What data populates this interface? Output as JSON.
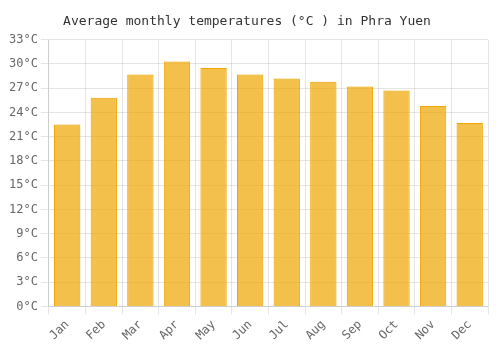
{
  "chart_data": {
    "type": "bar",
    "title": "Average monthly temperatures (°C ) in Phra Yuen",
    "categories": [
      "Jan",
      "Feb",
      "Mar",
      "Apr",
      "May",
      "Jun",
      "Jul",
      "Aug",
      "Sep",
      "Oct",
      "Nov",
      "Dec"
    ],
    "values": [
      22.5,
      25.8,
      28.7,
      30.3,
      29.5,
      28.7,
      28.2,
      27.8,
      27.2,
      26.7,
      24.8,
      22.7
    ],
    "color": "#F0A500",
    "ylim": [
      0,
      33
    ],
    "yticks": [
      {
        "value": 0,
        "label": "0°C"
      },
      {
        "value": 3,
        "label": "3°C"
      },
      {
        "value": 6,
        "label": "6°C"
      },
      {
        "value": 9,
        "label": "9°C"
      },
      {
        "value": 12,
        "label": "12°C"
      },
      {
        "value": 15,
        "label": "15°C"
      },
      {
        "value": 18,
        "label": "18°C"
      },
      {
        "value": 21,
        "label": "21°C"
      },
      {
        "value": 24,
        "label": "24°C"
      },
      {
        "value": 27,
        "label": "27°C"
      },
      {
        "value": 30,
        "label": "30°C"
      },
      {
        "value": 33,
        "label": "33°C"
      }
    ],
    "grid": true
  }
}
